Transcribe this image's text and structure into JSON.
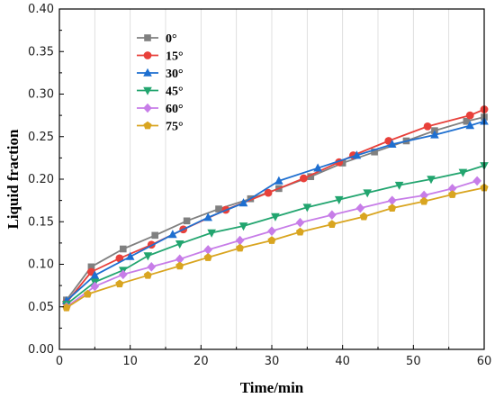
{
  "chart_data": {
    "type": "line",
    "xlabel": "Time/min",
    "ylabel": "Liquid fraction",
    "xlim": [
      0,
      60
    ],
    "ylim": [
      0,
      0.4
    ],
    "x_ticks": [
      0,
      10,
      20,
      30,
      40,
      50,
      60
    ],
    "y_ticks": [
      "0.00",
      "0.05",
      "0.10",
      "0.15",
      "0.20",
      "0.25",
      "0.30",
      "0.35",
      "0.40"
    ],
    "grid": "vertical-minor",
    "legend_position": "top-left",
    "series": [
      {
        "name": "0°",
        "color": "#808080",
        "marker": "square",
        "x": [
          1,
          4.5,
          9,
          13.5,
          18,
          22.5,
          27,
          31,
          35.5,
          40,
          44.5,
          49,
          53,
          57.5,
          60
        ],
        "y": [
          0.058,
          0.097,
          0.118,
          0.134,
          0.151,
          0.165,
          0.177,
          0.189,
          0.203,
          0.219,
          0.232,
          0.245,
          0.257,
          0.268,
          0.273
        ]
      },
      {
        "name": "15°",
        "color": "#e8403a",
        "marker": "circle",
        "x": [
          1,
          4.5,
          8.5,
          13,
          17.5,
          23.5,
          29.5,
          34.5,
          39.5,
          41.5,
          46.5,
          52,
          58,
          60
        ],
        "y": [
          0.055,
          0.091,
          0.107,
          0.123,
          0.141,
          0.164,
          0.184,
          0.201,
          0.22,
          0.228,
          0.245,
          0.262,
          0.275,
          0.282
        ]
      },
      {
        "name": "30°",
        "color": "#1e6fd0",
        "marker": "triangle-up",
        "x": [
          1,
          5,
          10,
          16,
          21,
          26,
          31,
          36.5,
          42,
          47,
          53,
          58,
          60
        ],
        "y": [
          0.057,
          0.087,
          0.109,
          0.135,
          0.155,
          0.172,
          0.198,
          0.213,
          0.228,
          0.241,
          0.252,
          0.263,
          0.268
        ]
      },
      {
        "name": "45°",
        "color": "#22a56f",
        "marker": "triangle-down",
        "x": [
          1,
          5,
          9,
          12.5,
          17,
          21.5,
          26,
          30.5,
          35,
          39.5,
          43.5,
          48,
          52.5,
          57,
          60
        ],
        "y": [
          0.053,
          0.079,
          0.093,
          0.11,
          0.124,
          0.137,
          0.145,
          0.156,
          0.167,
          0.176,
          0.184,
          0.193,
          0.2,
          0.208,
          0.216
        ]
      },
      {
        "name": "60°",
        "color": "#c77de8",
        "marker": "diamond",
        "x": [
          1,
          5,
          9,
          13,
          17,
          21,
          25.5,
          30,
          34,
          38.5,
          42.5,
          47,
          51.5,
          55.5,
          59
        ],
        "y": [
          0.05,
          0.074,
          0.088,
          0.097,
          0.106,
          0.117,
          0.128,
          0.139,
          0.149,
          0.158,
          0.166,
          0.175,
          0.181,
          0.189,
          0.198
        ]
      },
      {
        "name": "75°",
        "color": "#d9a520",
        "marker": "pentagon",
        "x": [
          1,
          4,
          8.5,
          12.5,
          17,
          21,
          25.5,
          30,
          34,
          38.5,
          43,
          47,
          51.5,
          55.5,
          60
        ],
        "y": [
          0.049,
          0.065,
          0.077,
          0.087,
          0.098,
          0.108,
          0.119,
          0.128,
          0.138,
          0.147,
          0.156,
          0.166,
          0.174,
          0.182,
          0.19
        ]
      }
    ]
  }
}
